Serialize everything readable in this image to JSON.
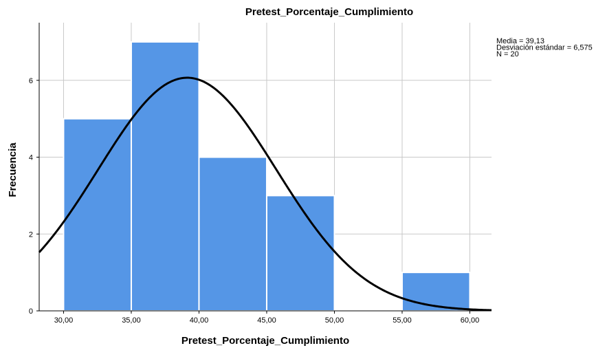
{
  "chart_data": {
    "type": "bar",
    "title": "Pretest_Porcentaje_Cumplimiento",
    "xlabel": "Pretest_Porcentaje_Cumplimiento",
    "ylabel": "Frecuencia",
    "x_ticks": [
      "30,00",
      "35,00",
      "40,00",
      "45,00",
      "50,00",
      "55,00",
      "60,00"
    ],
    "y_ticks": [
      "0",
      "2",
      "4",
      "6"
    ],
    "xlim": [
      28.2,
      61.6
    ],
    "ylim": [
      0,
      7.5
    ],
    "bins": [
      {
        "from": 30,
        "to": 35,
        "count": 5
      },
      {
        "from": 35,
        "to": 40,
        "count": 7
      },
      {
        "from": 40,
        "to": 45,
        "count": 4
      },
      {
        "from": 45,
        "to": 50,
        "count": 3
      },
      {
        "from": 50,
        "to": 55,
        "count": 0
      },
      {
        "from": 55,
        "to": 60,
        "count": 1
      }
    ],
    "normal_curve": {
      "mean": 39.13,
      "sd": 6.575,
      "n": 20,
      "bin_width": 5
    },
    "stats_lines": [
      "Media = 39,13",
      "Desviación estándar = 6,575",
      "N = 20"
    ],
    "bar_color": "#5596e6",
    "grid": true
  }
}
